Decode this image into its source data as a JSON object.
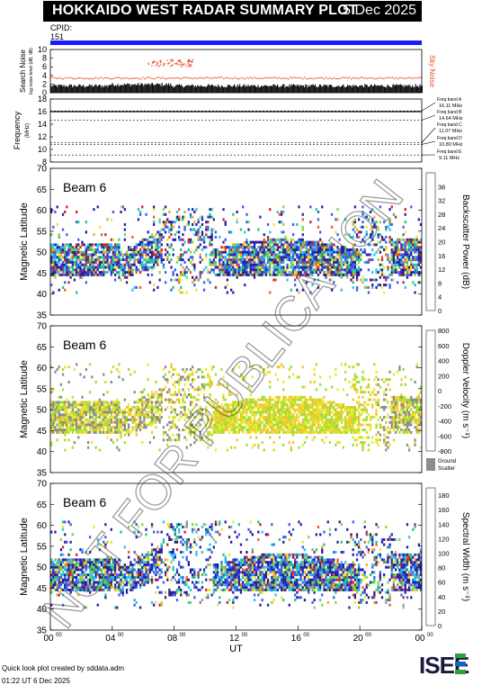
{
  "header": {
    "title": "HOKKAIDO WEST RADAR SUMMARY PLOT",
    "date": "5 Dec 2025"
  },
  "cpid": {
    "label": "CPID:",
    "value": "151"
  },
  "footer": {
    "credit": "Quick look plot created by sddata.adm",
    "stamp": "01:22 UT  6 Dec 2025"
  },
  "logo": {
    "text": "ISEE",
    "colors": [
      "#1a1a3a",
      "#2e9e3e",
      "#1565c0"
    ]
  },
  "watermark": "NOT FOR PUBLICATION",
  "x_axis": {
    "label": "UT",
    "ticks": [
      "00",
      "04",
      "08",
      "12",
      "16",
      "20",
      "00"
    ],
    "tick_sup": "00"
  },
  "noise_panel": {
    "ylabel_main": "Search Noise",
    "ylabel_sub": "log noise-level (dB, dB)",
    "right_label": "Sky Noise",
    "yticks": [
      "0",
      "2",
      "4",
      "6",
      "8",
      "10"
    ],
    "ylim": [
      0,
      10
    ],
    "sky_noise_level": 3.5,
    "burst": {
      "start_hour": 6.3,
      "end_hour": 9.2,
      "level": 7.0
    }
  },
  "freq_panel": {
    "ylabel_main": "Frequency",
    "ylabel_sub": "(MHz)",
    "yticks": [
      "8",
      "10",
      "12",
      "14",
      "16",
      "18"
    ],
    "ylim": [
      8,
      18
    ],
    "operating_freq": 16.0,
    "bands": [
      {
        "name": "Freq band A",
        "value": "16.11 MHz",
        "mhz": 16.11
      },
      {
        "name": "Freq band B",
        "value": "14.64 MHz",
        "mhz": 14.64
      },
      {
        "name": "Freq band C",
        "value": "11.07 MHz",
        "mhz": 11.07
      },
      {
        "name": "Freq band D",
        "value": "10.80 MHz",
        "mhz": 10.8
      },
      {
        "name": "Freq band E",
        "value": "9.11 MHz",
        "mhz": 9.11
      }
    ]
  },
  "chart_data": [
    {
      "type": "heatmap",
      "panel": "power",
      "beam_label": "Beam  6",
      "ylabel": "Magnetic Latitude",
      "ylim": [
        35,
        70
      ],
      "yticks": [
        "35",
        "40",
        "45",
        "50",
        "55",
        "60",
        "65",
        "70"
      ],
      "xlim_hours": [
        0,
        24
      ],
      "colorbar_label": "Backscatter Power (dB)",
      "colorbar_ticks": [
        "0",
        "4",
        "8",
        "12",
        "16",
        "20",
        "24",
        "28",
        "32",
        "36"
      ],
      "colorbar_range": [
        0,
        40
      ],
      "colorscale": [
        "#2a1fa0",
        "#3a5ff0",
        "#30c0f0",
        "#20c880",
        "#80d840",
        "#e8e830",
        "#f0a830",
        "#e86028",
        "#c82820"
      ]
    },
    {
      "type": "heatmap",
      "panel": "velocity",
      "beam_label": "Beam  6",
      "ylabel": "Magnetic Latitude",
      "ylim": [
        35,
        70
      ],
      "yticks": [
        "35",
        "40",
        "45",
        "50",
        "55",
        "60",
        "65",
        "70"
      ],
      "xlim_hours": [
        0,
        24
      ],
      "colorbar_label": "Doppler Velocity (m s⁻¹)",
      "colorbar_ticks": [
        "-800",
        "-600",
        "-400",
        "-200",
        "0",
        "200",
        "400",
        "600",
        "800"
      ],
      "colorbar_range": [
        -800,
        800
      ],
      "colorscale": [
        "#c82818",
        "#e85018",
        "#f08820",
        "#f0c830",
        "#e8e830",
        "#a0e030",
        "#40c840",
        "#2080e0",
        "#2828b0"
      ],
      "ground_scatter_label": [
        "Ground",
        "Scatter"
      ],
      "ground_scatter_color": "#8c8c8c"
    },
    {
      "type": "heatmap",
      "panel": "width",
      "beam_label": "Beam  6",
      "ylabel": "Magnetic Latitude",
      "ylim": [
        35,
        70
      ],
      "yticks": [
        "35",
        "40",
        "45",
        "50",
        "55",
        "60",
        "65",
        "70"
      ],
      "xlim_hours": [
        0,
        24
      ],
      "colorbar_label": "Spectral Width (m s⁻¹)",
      "colorbar_ticks": [
        "0",
        "20",
        "40",
        "60",
        "80",
        "100",
        "120",
        "140",
        "160",
        "180"
      ],
      "colorbar_range": [
        0,
        190
      ],
      "colorscale": [
        "#2a1fa0",
        "#3a5ff0",
        "#30c0f0",
        "#20c880",
        "#80d840",
        "#e8e830",
        "#f0a830",
        "#e86028",
        "#c82820"
      ]
    }
  ]
}
